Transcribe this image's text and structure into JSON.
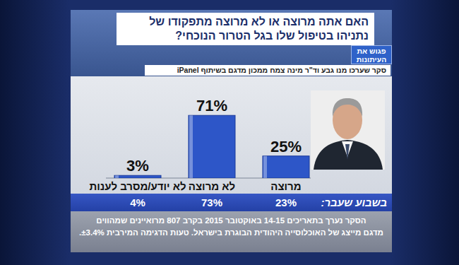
{
  "chart_data": {
    "type": "bar",
    "title": "האם אתה מרוצה או לא מרוצה מתפקודו של נתניהו בטיפול שלו בגל הטרור הנוכחי?",
    "subtitle": "סקר שערכו מנו גבע וד\"ר מינה צמח ממכון מדגם בשיתוף iPanel",
    "categories": [
      "מרוצה",
      "לא מרוצה",
      "לא יודע/מסרב לענות"
    ],
    "values": [
      25,
      71,
      3
    ],
    "value_labels": [
      "25%",
      "71%",
      "3%"
    ],
    "color": "#2d56c8",
    "data_labels": true,
    "tick_labels": "x",
    "ylim": [
      0,
      80
    ],
    "previous": {
      "label": "בשבוע שעבר:",
      "values": [
        23,
        73,
        4
      ],
      "value_labels": [
        "23%",
        "73%",
        "4%"
      ]
    },
    "annotations": [
      "פגוש את העיתונות",
      "הסקר נערך בתאריכים 14-15 באוקטובר 2015 בקרב 807 מרואיינים שמהווים",
      "מדגם מייצג של האוכלוסייה היהודית הבוגרת בישראל. טעות הדגימה המירבית ±3.4%."
    ]
  }
}
